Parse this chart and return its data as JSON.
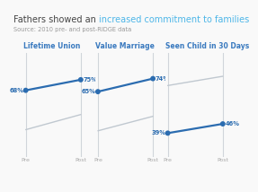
{
  "title_normal": "Fathers showed an ",
  "title_highlight": "increased commitment to families",
  "subtitle": "Source: 2010 pre- and post-RIDGE data",
  "panels": [
    {
      "label": "Lifetime Union",
      "pre_highlight": 68,
      "post_highlight": 75,
      "pre_other": 42,
      "post_other": 52
    },
    {
      "label": "Value Marriage",
      "pre_highlight": 65,
      "post_highlight": 74,
      "pre_other": 38,
      "post_other": 48
    },
    {
      "label": "Seen Child in 30 Days",
      "pre_highlight": 39,
      "post_highlight": 46,
      "pre_other": 75,
      "post_other": 82
    }
  ],
  "highlight_color": "#2b6cb0",
  "other_color": "#c0c8d0",
  "title_color": "#444444",
  "highlight_word_color": "#4db6e8",
  "subtitle_color": "#999999",
  "label_color": "#3a7abf",
  "axis_color": "#d0d5da",
  "background_color": "#f9f9f9",
  "dot_size": 18,
  "title_fontsize": 7.0,
  "subtitle_fontsize": 4.8,
  "label_fontsize": 5.5,
  "tick_fontsize": 4.5,
  "value_fontsize": 4.8
}
